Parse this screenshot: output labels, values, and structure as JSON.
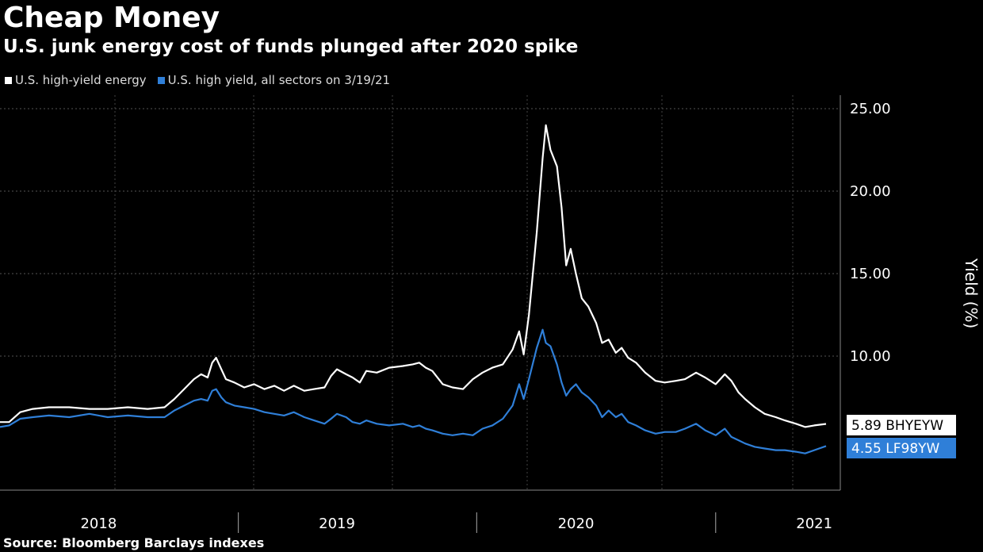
{
  "header": {
    "title": "Cheap Money",
    "subtitle": "U.S. junk energy cost of funds plunged after 2020 spike"
  },
  "source": "Source: Bloomberg Barclays indexes",
  "colors": {
    "energy": "#ffffff",
    "all_sectors": "#2f7fd8",
    "background": "#000000"
  },
  "chart_data": {
    "type": "line",
    "ylabel": "Yield (%)",
    "ylim": [
      0,
      25
    ],
    "yticks": [
      "10.00",
      "15.00",
      "20.00",
      "25.00"
    ],
    "ytick_values": [
      10,
      15,
      20,
      25
    ],
    "year_labels": [
      "2018",
      "2019",
      "2020",
      "2021"
    ],
    "year_label_dates": [
      "2018-03-01",
      "2019-03-01",
      "2020-03-01",
      "2021-03-01"
    ],
    "year_boundaries": [
      "2018-10-01",
      "2019-10-01",
      "2020-10-01"
    ],
    "x_start": "2017-10-01",
    "x_end": "2021-03-19",
    "legend_position": "top-left",
    "grid": true,
    "series": [
      {
        "name": "U.S. high-yield energy",
        "color": "#ffffff",
        "last_label": "5.89 BHYEYW",
        "points": [
          [
            "2017-10-01",
            6.0
          ],
          [
            "2017-10-15",
            6.0
          ],
          [
            "2017-11-01",
            6.6
          ],
          [
            "2017-11-20",
            6.8
          ],
          [
            "2017-12-15",
            6.9
          ],
          [
            "2018-01-15",
            6.9
          ],
          [
            "2018-02-15",
            6.8
          ],
          [
            "2018-03-15",
            6.8
          ],
          [
            "2018-04-15",
            6.9
          ],
          [
            "2018-05-15",
            6.8
          ],
          [
            "2018-06-10",
            6.9
          ],
          [
            "2018-06-25",
            7.4
          ],
          [
            "2018-07-10",
            8.0
          ],
          [
            "2018-07-25",
            8.6
          ],
          [
            "2018-08-05",
            8.9
          ],
          [
            "2018-08-15",
            8.7
          ],
          [
            "2018-08-22",
            9.6
          ],
          [
            "2018-08-28",
            9.9
          ],
          [
            "2018-09-05",
            9.2
          ],
          [
            "2018-09-12",
            8.6
          ],
          [
            "2018-09-25",
            8.4
          ],
          [
            "2018-10-10",
            8.1
          ],
          [
            "2018-10-25",
            8.3
          ],
          [
            "2018-11-10",
            8.0
          ],
          [
            "2018-11-25",
            8.2
          ],
          [
            "2018-12-10",
            7.9
          ],
          [
            "2018-12-25",
            8.2
          ],
          [
            "2019-01-10",
            7.9
          ],
          [
            "2019-01-25",
            8.0
          ],
          [
            "2019-02-10",
            8.1
          ],
          [
            "2019-02-20",
            8.8
          ],
          [
            "2019-03-01",
            9.2
          ],
          [
            "2019-03-15",
            8.9
          ],
          [
            "2019-03-25",
            8.7
          ],
          [
            "2019-04-05",
            8.4
          ],
          [
            "2019-04-15",
            9.1
          ],
          [
            "2019-05-01",
            9.0
          ],
          [
            "2019-05-20",
            9.3
          ],
          [
            "2019-06-10",
            9.4
          ],
          [
            "2019-06-25",
            9.5
          ],
          [
            "2019-07-05",
            9.6
          ],
          [
            "2019-07-15",
            9.3
          ],
          [
            "2019-07-25",
            9.1
          ],
          [
            "2019-08-10",
            8.3
          ],
          [
            "2019-08-25",
            8.1
          ],
          [
            "2019-09-10",
            8.0
          ],
          [
            "2019-09-25",
            8.6
          ],
          [
            "2019-10-10",
            9.0
          ],
          [
            "2019-10-25",
            9.3
          ],
          [
            "2019-11-10",
            9.5
          ],
          [
            "2019-11-25",
            10.4
          ],
          [
            "2019-12-05",
            11.5
          ],
          [
            "2019-12-12",
            10.1
          ],
          [
            "2019-12-20",
            12.5
          ],
          [
            "2020-01-01",
            17.5
          ],
          [
            "2020-01-10",
            22.0
          ],
          [
            "2020-01-15",
            24.0
          ],
          [
            "2020-01-22",
            22.5
          ],
          [
            "2020-02-01",
            21.5
          ],
          [
            "2020-02-08",
            19.0
          ],
          [
            "2020-02-15",
            15.5
          ],
          [
            "2020-02-22",
            16.5
          ],
          [
            "2020-03-01",
            15.0
          ],
          [
            "2020-03-10",
            13.5
          ],
          [
            "2020-03-20",
            13.0
          ],
          [
            "2020-04-01",
            12.0
          ],
          [
            "2020-04-10",
            10.8
          ],
          [
            "2020-04-20",
            11.0
          ],
          [
            "2020-05-01",
            10.2
          ],
          [
            "2020-05-10",
            10.5
          ],
          [
            "2020-05-20",
            9.9
          ],
          [
            "2020-06-01",
            9.6
          ],
          [
            "2020-06-15",
            9.0
          ],
          [
            "2020-07-01",
            8.5
          ],
          [
            "2020-07-15",
            8.4
          ],
          [
            "2020-08-01",
            8.5
          ],
          [
            "2020-08-15",
            8.6
          ],
          [
            "2020-09-01",
            9.0
          ],
          [
            "2020-09-15",
            8.7
          ],
          [
            "2020-10-01",
            8.3
          ],
          [
            "2020-10-15",
            8.9
          ],
          [
            "2020-10-25",
            8.5
          ],
          [
            "2020-11-05",
            7.8
          ],
          [
            "2020-11-15",
            7.4
          ],
          [
            "2020-11-30",
            6.9
          ],
          [
            "2020-12-15",
            6.5
          ],
          [
            "2021-01-01",
            6.3
          ],
          [
            "2021-01-15",
            6.1
          ],
          [
            "2021-02-01",
            5.9
          ],
          [
            "2021-02-15",
            5.7
          ],
          [
            "2021-03-01",
            5.8
          ],
          [
            "2021-03-19",
            5.89
          ]
        ]
      },
      {
        "name": "U.S. high yield, all sectors on 3/19/21",
        "color": "#2f7fd8",
        "last_label": "4.55 LF98YW",
        "points": [
          [
            "2017-10-01",
            5.7
          ],
          [
            "2017-10-15",
            5.8
          ],
          [
            "2017-11-01",
            6.2
          ],
          [
            "2017-11-20",
            6.3
          ],
          [
            "2017-12-15",
            6.4
          ],
          [
            "2018-01-15",
            6.3
          ],
          [
            "2018-02-15",
            6.5
          ],
          [
            "2018-03-15",
            6.3
          ],
          [
            "2018-04-15",
            6.4
          ],
          [
            "2018-05-15",
            6.3
          ],
          [
            "2018-06-10",
            6.3
          ],
          [
            "2018-06-25",
            6.7
          ],
          [
            "2018-07-10",
            7.0
          ],
          [
            "2018-07-25",
            7.3
          ],
          [
            "2018-08-05",
            7.4
          ],
          [
            "2018-08-15",
            7.3
          ],
          [
            "2018-08-22",
            7.9
          ],
          [
            "2018-08-28",
            8.0
          ],
          [
            "2018-09-05",
            7.5
          ],
          [
            "2018-09-12",
            7.2
          ],
          [
            "2018-09-25",
            7.0
          ],
          [
            "2018-10-10",
            6.9
          ],
          [
            "2018-10-25",
            6.8
          ],
          [
            "2018-11-10",
            6.6
          ],
          [
            "2018-11-25",
            6.5
          ],
          [
            "2018-12-10",
            6.4
          ],
          [
            "2018-12-25",
            6.6
          ],
          [
            "2019-01-10",
            6.3
          ],
          [
            "2019-01-25",
            6.1
          ],
          [
            "2019-02-10",
            5.9
          ],
          [
            "2019-02-20",
            6.2
          ],
          [
            "2019-03-01",
            6.5
          ],
          [
            "2019-03-15",
            6.3
          ],
          [
            "2019-03-25",
            6.0
          ],
          [
            "2019-04-05",
            5.9
          ],
          [
            "2019-04-15",
            6.1
          ],
          [
            "2019-05-01",
            5.9
          ],
          [
            "2019-05-20",
            5.8
          ],
          [
            "2019-06-10",
            5.9
          ],
          [
            "2019-06-25",
            5.7
          ],
          [
            "2019-07-05",
            5.8
          ],
          [
            "2019-07-15",
            5.6
          ],
          [
            "2019-07-25",
            5.5
          ],
          [
            "2019-08-10",
            5.3
          ],
          [
            "2019-08-25",
            5.2
          ],
          [
            "2019-09-10",
            5.3
          ],
          [
            "2019-09-25",
            5.2
          ],
          [
            "2019-10-10",
            5.6
          ],
          [
            "2019-10-25",
            5.8
          ],
          [
            "2019-11-10",
            6.2
          ],
          [
            "2019-11-25",
            7.0
          ],
          [
            "2019-12-05",
            8.3
          ],
          [
            "2019-12-12",
            7.4
          ],
          [
            "2019-12-20",
            8.6
          ],
          [
            "2020-01-01",
            10.5
          ],
          [
            "2020-01-10",
            11.6
          ],
          [
            "2020-01-15",
            10.8
          ],
          [
            "2020-01-22",
            10.6
          ],
          [
            "2020-02-01",
            9.5
          ],
          [
            "2020-02-08",
            8.4
          ],
          [
            "2020-02-15",
            7.6
          ],
          [
            "2020-02-22",
            8.0
          ],
          [
            "2020-03-01",
            8.3
          ],
          [
            "2020-03-10",
            7.8
          ],
          [
            "2020-03-20",
            7.5
          ],
          [
            "2020-04-01",
            7.0
          ],
          [
            "2020-04-10",
            6.3
          ],
          [
            "2020-04-20",
            6.7
          ],
          [
            "2020-05-01",
            6.3
          ],
          [
            "2020-05-10",
            6.5
          ],
          [
            "2020-05-20",
            6.0
          ],
          [
            "2020-06-01",
            5.8
          ],
          [
            "2020-06-15",
            5.5
          ],
          [
            "2020-07-01",
            5.3
          ],
          [
            "2020-07-15",
            5.4
          ],
          [
            "2020-08-01",
            5.4
          ],
          [
            "2020-08-15",
            5.6
          ],
          [
            "2020-09-01",
            5.9
          ],
          [
            "2020-09-15",
            5.5
          ],
          [
            "2020-10-01",
            5.2
          ],
          [
            "2020-10-15",
            5.6
          ],
          [
            "2020-10-25",
            5.1
          ],
          [
            "2020-11-05",
            4.9
          ],
          [
            "2020-11-15",
            4.7
          ],
          [
            "2020-11-30",
            4.5
          ],
          [
            "2020-12-15",
            4.4
          ],
          [
            "2021-01-01",
            4.3
          ],
          [
            "2021-01-15",
            4.3
          ],
          [
            "2021-02-01",
            4.2
          ],
          [
            "2021-02-15",
            4.1
          ],
          [
            "2021-03-01",
            4.3
          ],
          [
            "2021-03-19",
            4.55
          ]
        ]
      }
    ]
  }
}
